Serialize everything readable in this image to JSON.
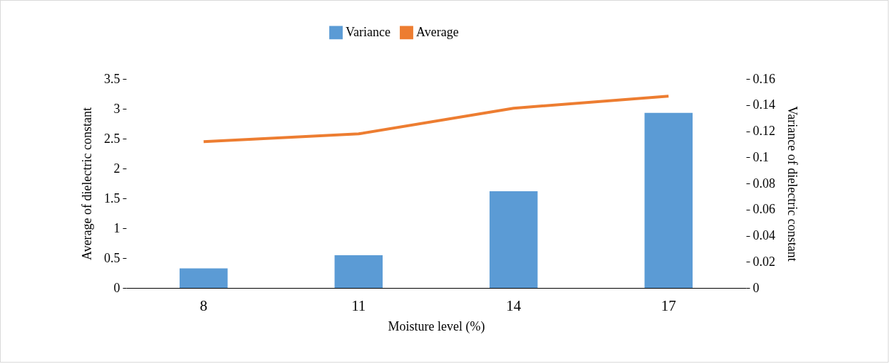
{
  "chart_data": {
    "type": "bar",
    "xlabel": "Moisture level (%)",
    "ylabel": "Average of dielectric constant",
    "y2label": "Variance of dielectric constant",
    "categories": [
      "8",
      "11",
      "14",
      "17"
    ],
    "series": [
      {
        "name": "Variance",
        "axis": "y2",
        "color": "#5b9bd5",
        "values": [
          0.015,
          0.025,
          0.074,
          0.134
        ]
      },
      {
        "name": "Average",
        "type": "line",
        "color": "#ed7d31",
        "values": [
          2.45,
          2.58,
          3.01,
          3.21
        ]
      }
    ],
    "ylim": [
      0,
      3.5
    ],
    "yticks": [
      0,
      0.5,
      1,
      1.5,
      2,
      2.5,
      3,
      3.5
    ],
    "y2lim": [
      0,
      0.16
    ],
    "y2ticks": [
      0,
      0.02,
      0.04,
      0.06,
      0.08,
      0.1,
      0.12,
      0.14,
      0.16
    ],
    "grid": false,
    "legend": "top",
    "marker": "none",
    "line_style": "solid"
  }
}
